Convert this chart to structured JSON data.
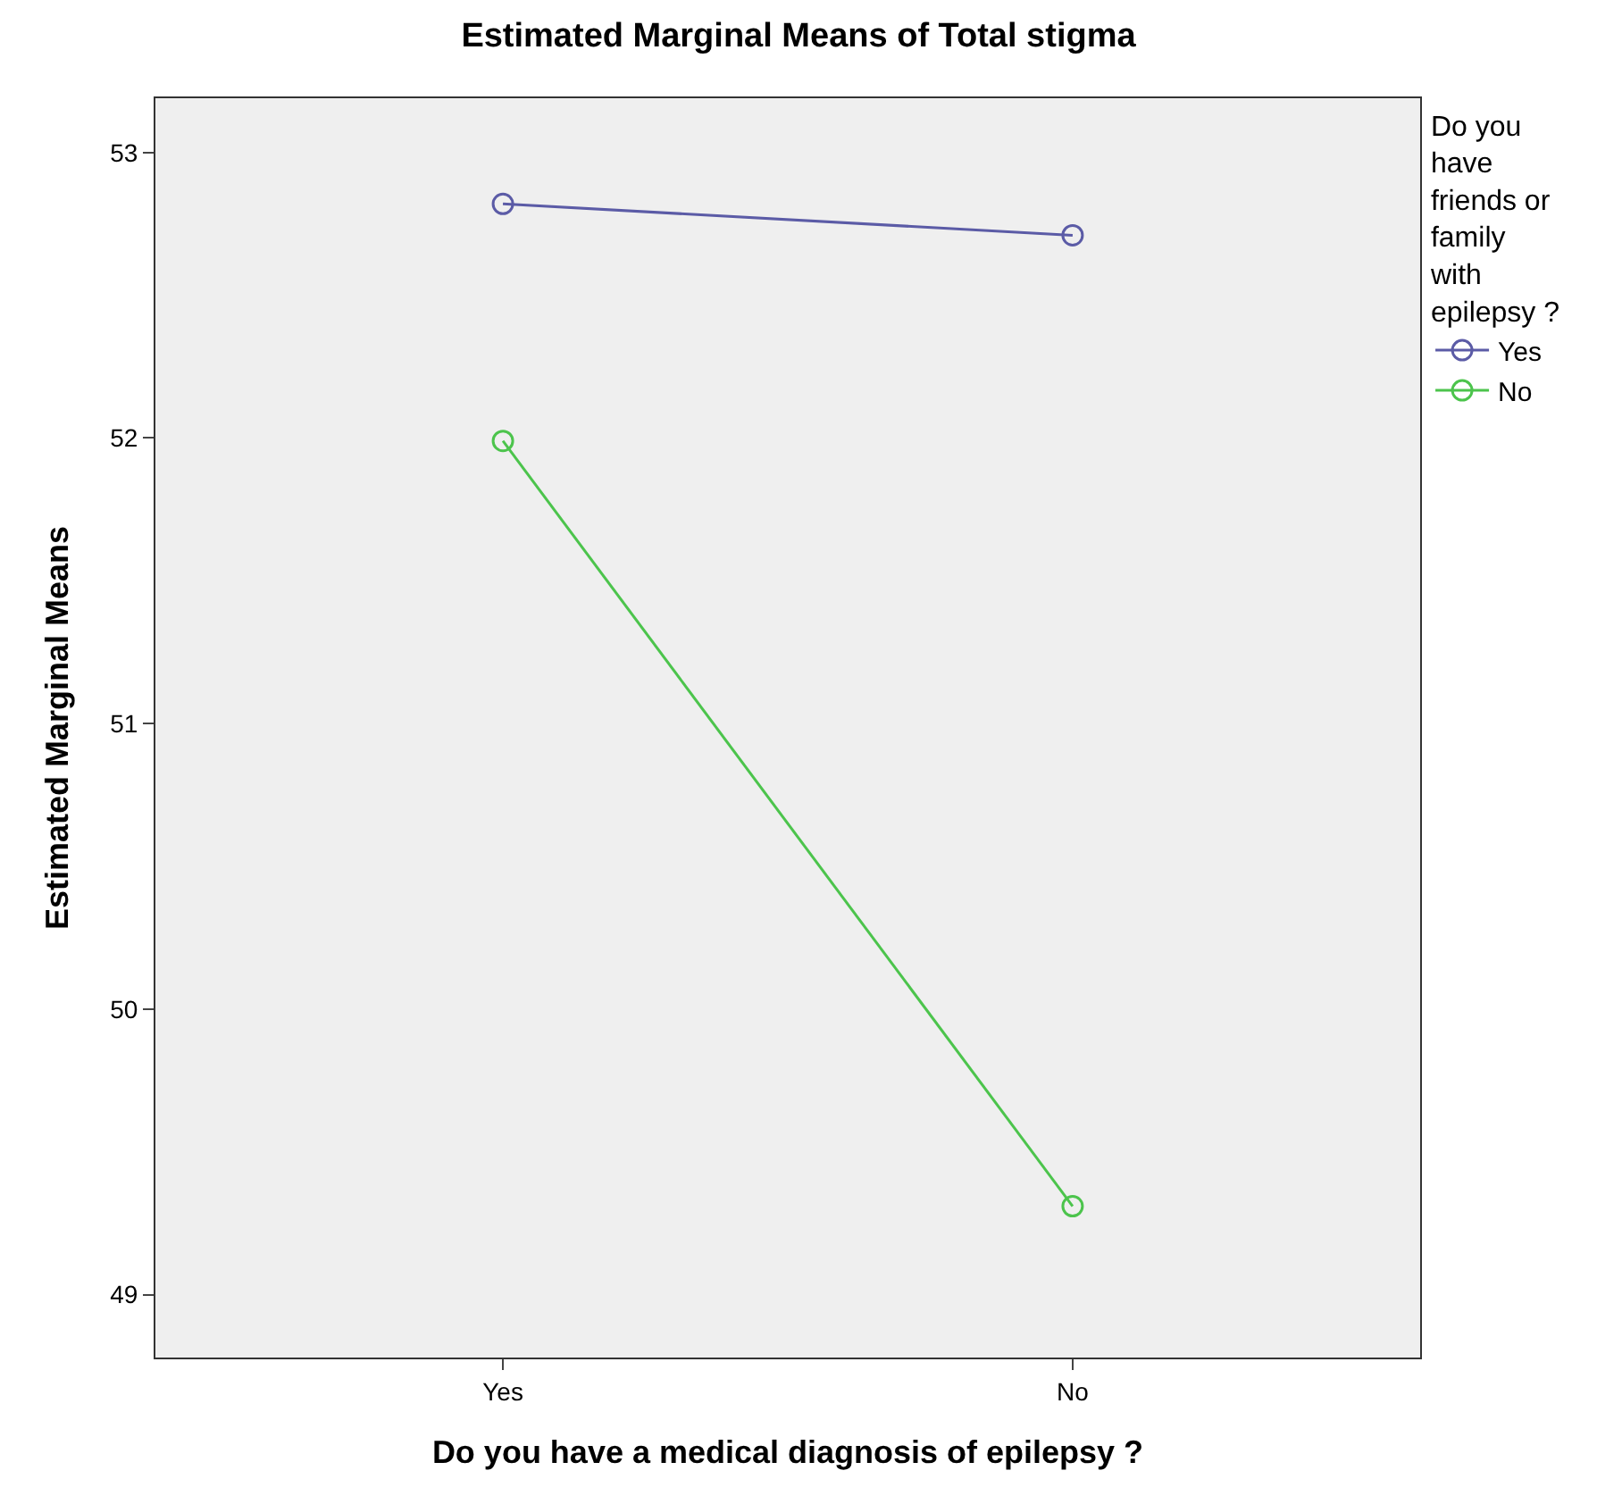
{
  "chart_data": {
    "type": "line",
    "title": "Estimated Marginal Means of Total stigma",
    "xlabel": "Do you have a medical diagnosis of epilepsy ?",
    "ylabel": "Estimated Marginal Means",
    "legend_title": "Do you have friends or family with epilepsy ?",
    "categories": [
      "Yes",
      "No"
    ],
    "series": [
      {
        "name": "Yes",
        "color": "#5b5ba6",
        "values": [
          52.82,
          52.71
        ]
      },
      {
        "name": "No",
        "color": "#4cc44c",
        "values": [
          51.99,
          49.31
        ]
      }
    ],
    "ylim": [
      48.78,
      53.19
    ],
    "yticks": [
      49,
      50,
      51,
      52,
      53
    ],
    "grid": false,
    "legend": "right",
    "marker": "circle",
    "line_style": "solid"
  }
}
